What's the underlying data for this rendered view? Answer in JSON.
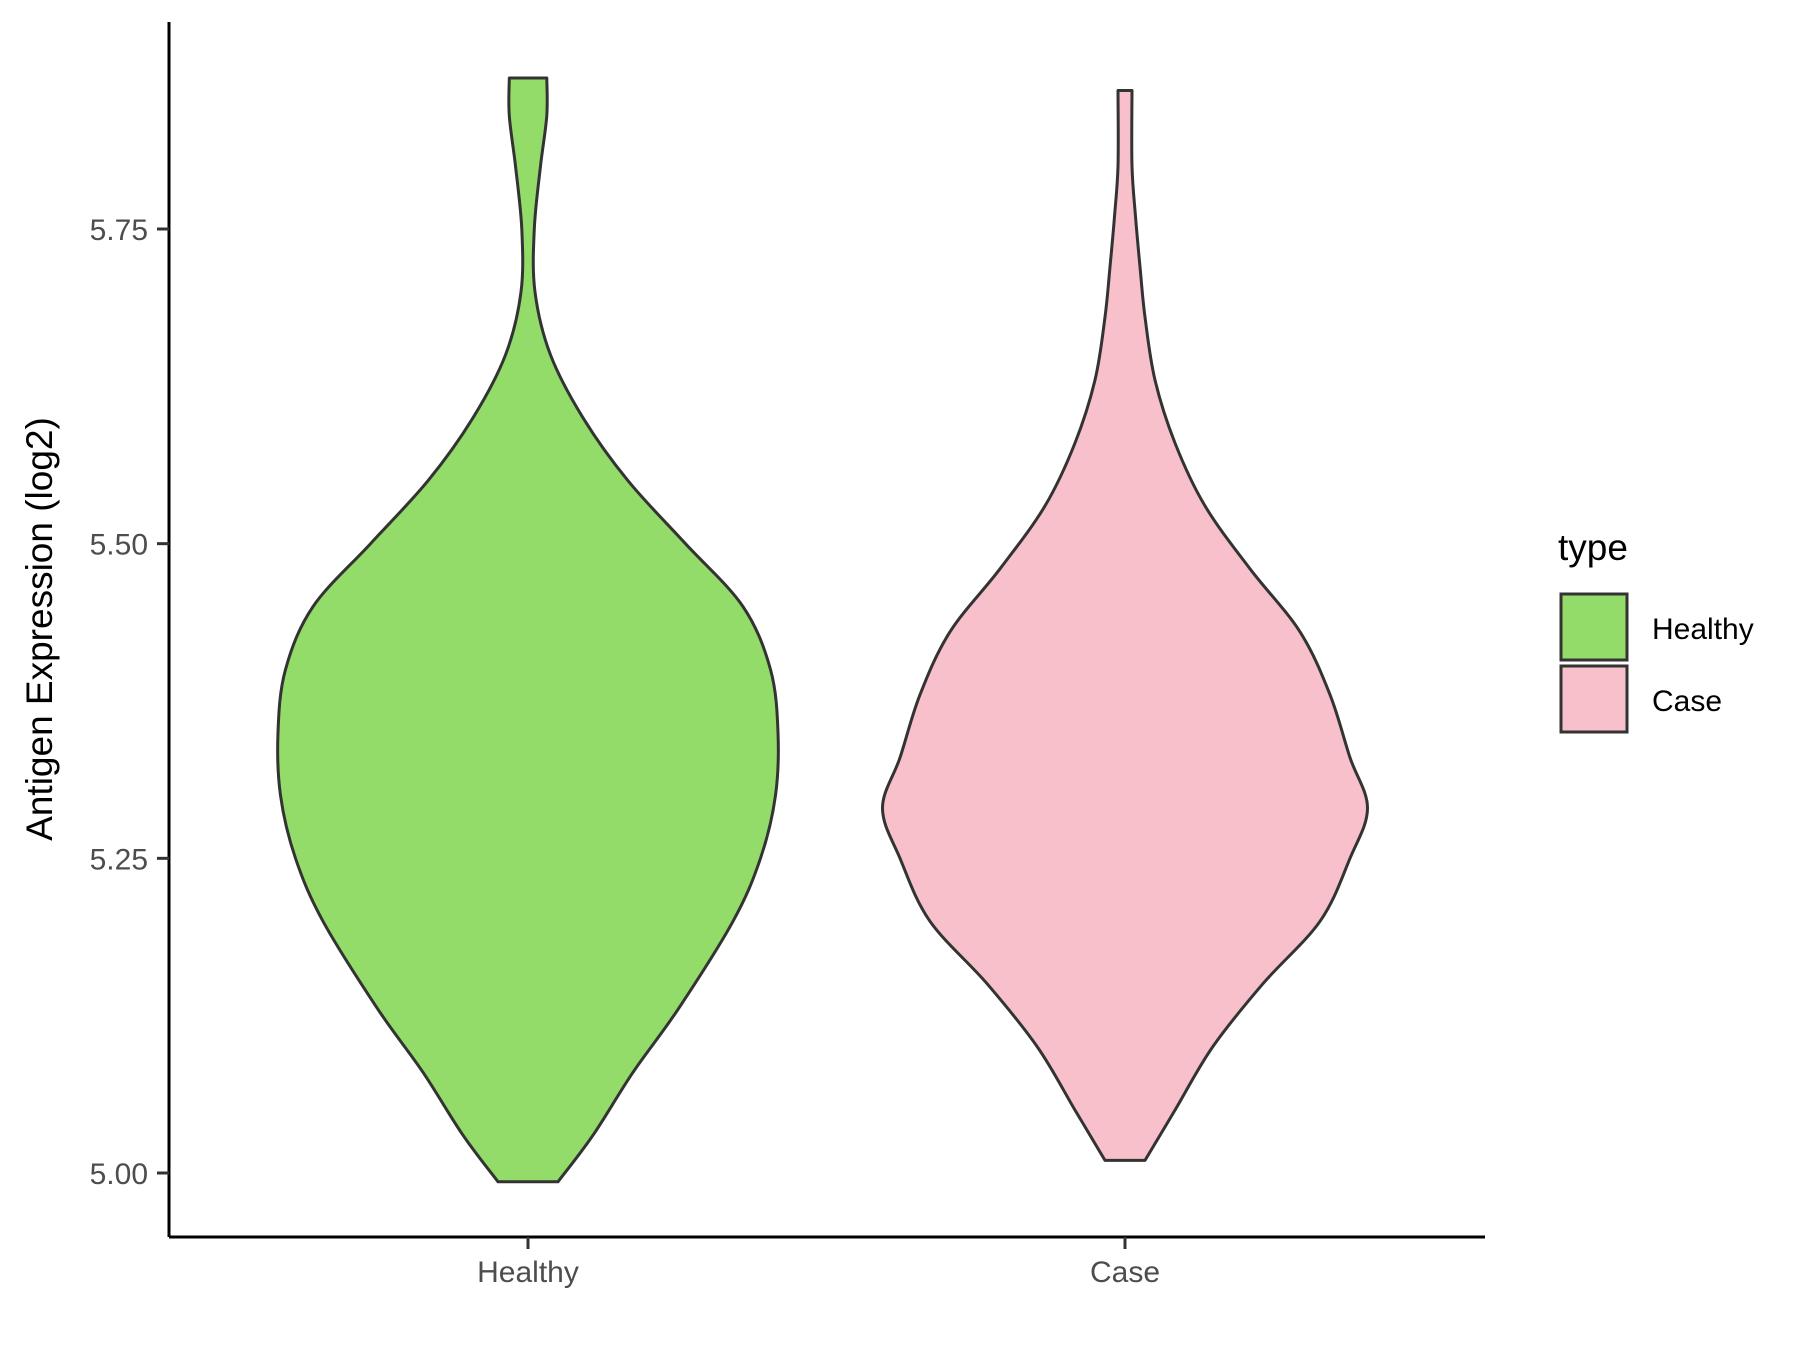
{
  "chart_data": {
    "type": "violin",
    "title": "",
    "xlabel": "",
    "ylabel": "Antigen Expression (log2)",
    "ylim": [
      4.95,
      5.92
    ],
    "y_ticks": [
      "5.00",
      "5.25",
      "5.50",
      "5.75"
    ],
    "y_tick_values": [
      5.0,
      5.25,
      5.5,
      5.75
    ],
    "categories": [
      "Healthy",
      "Case"
    ],
    "legend": {
      "title": "type",
      "position": "right",
      "entries": [
        "Healthy",
        "Case"
      ]
    },
    "grid": false,
    "series": [
      {
        "name": "Healthy",
        "color": "#93dc6a",
        "min": 4.993,
        "max": 5.87,
        "density_profile": [
          [
            4.993,
            0.12
          ],
          [
            5.03,
            0.26
          ],
          [
            5.08,
            0.42
          ],
          [
            5.13,
            0.6
          ],
          [
            5.2,
            0.82
          ],
          [
            5.25,
            0.93
          ],
          [
            5.3,
            0.99
          ],
          [
            5.35,
            1.0
          ],
          [
            5.4,
            0.97
          ],
          [
            5.45,
            0.86
          ],
          [
            5.5,
            0.63
          ],
          [
            5.55,
            0.4
          ],
          [
            5.6,
            0.22
          ],
          [
            5.65,
            0.09
          ],
          [
            5.7,
            0.028
          ],
          [
            5.75,
            0.025
          ],
          [
            5.8,
            0.05
          ],
          [
            5.84,
            0.075
          ],
          [
            5.87,
            0.075
          ]
        ]
      },
      {
        "name": "Case",
        "color": "#f7c0cb",
        "min": 5.01,
        "max": 5.86,
        "density_profile": [
          [
            5.01,
            0.08
          ],
          [
            5.05,
            0.2
          ],
          [
            5.1,
            0.35
          ],
          [
            5.15,
            0.55
          ],
          [
            5.2,
            0.78
          ],
          [
            5.25,
            0.9
          ],
          [
            5.29,
            0.97
          ],
          [
            5.33,
            0.9
          ],
          [
            5.38,
            0.82
          ],
          [
            5.43,
            0.7
          ],
          [
            5.48,
            0.5
          ],
          [
            5.53,
            0.32
          ],
          [
            5.58,
            0.2
          ],
          [
            5.63,
            0.12
          ],
          [
            5.68,
            0.08
          ],
          [
            5.72,
            0.06
          ],
          [
            5.76,
            0.042
          ],
          [
            5.8,
            0.028
          ],
          [
            5.86,
            0.028
          ]
        ]
      }
    ]
  }
}
